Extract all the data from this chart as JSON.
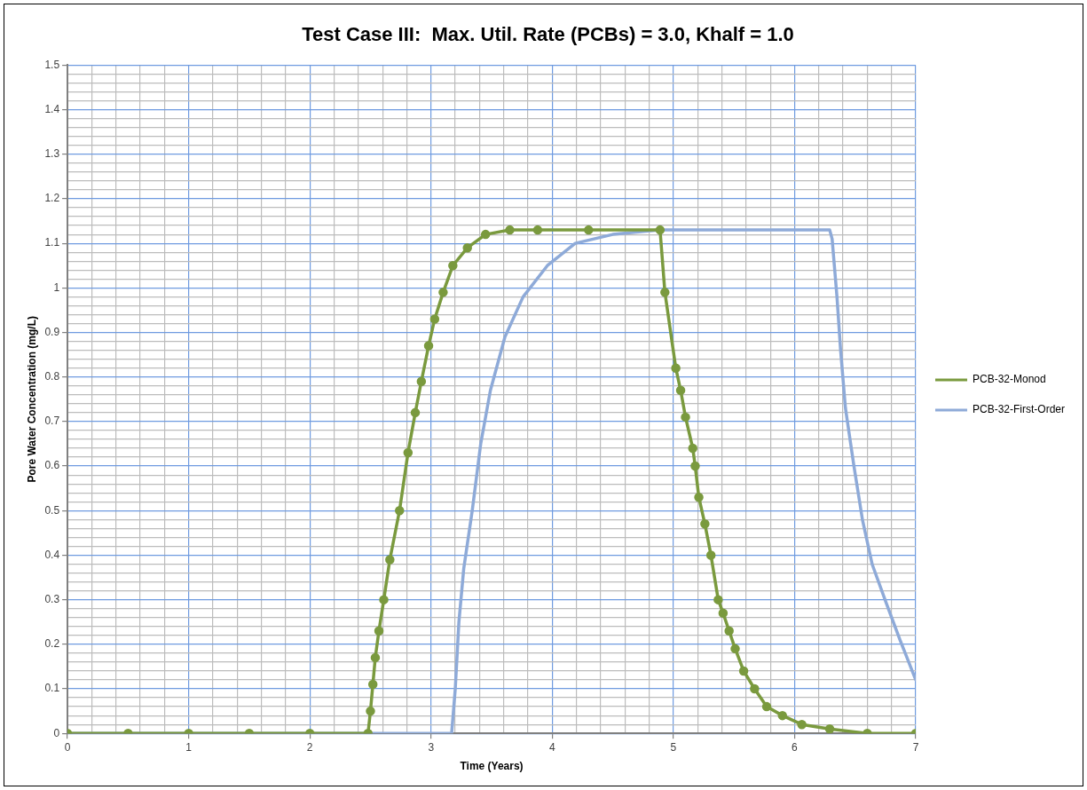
{
  "chart_data": {
    "type": "line",
    "title": "Test Case III:  Max. Util. Rate (PCBs) = 3.0, Khalf = 1.0",
    "xlabel": "Time (Years)",
    "ylabel": "Pore Water Concentration (mg/L)",
    "series": [
      {
        "name": "PCB-32-Monod",
        "color": "#7a9a3e",
        "marker": "circle",
        "x": [
          0,
          0.5,
          1,
          1.5,
          2,
          2.48,
          2.5,
          2.52,
          2.54,
          2.57,
          2.61,
          2.66,
          2.74,
          2.81,
          2.87,
          2.92,
          2.98,
          3.03,
          3.1,
          3.18,
          3.3,
          3.45,
          3.65,
          3.88,
          4.3,
          4.89,
          4.93,
          5.02,
          5.06,
          5.1,
          5.16,
          5.18,
          5.21,
          5.26,
          5.31,
          5.37,
          5.41,
          5.46,
          5.51,
          5.58,
          5.67,
          5.77,
          5.9,
          6.06,
          6.29,
          6.6,
          7
        ],
        "values": [
          0,
          0,
          0,
          0,
          0,
          0,
          0.05,
          0.11,
          0.17,
          0.23,
          0.3,
          0.39,
          0.5,
          0.63,
          0.72,
          0.79,
          0.87,
          0.93,
          0.99,
          1.05,
          1.09,
          1.12,
          1.13,
          1.13,
          1.13,
          1.13,
          0.99,
          0.82,
          0.77,
          0.71,
          0.64,
          0.6,
          0.53,
          0.47,
          0.4,
          0.3,
          0.27,
          0.23,
          0.19,
          0.14,
          0.1,
          0.06,
          0.04,
          0.02,
          0.01,
          0,
          0
        ]
      },
      {
        "name": "PCB-32-First-Order",
        "color": "#8eaad8",
        "marker": "none",
        "x": [
          0,
          3.17,
          3.2,
          3.23,
          3.27,
          3.34,
          3.41,
          3.49,
          3.61,
          3.76,
          3.96,
          4.19,
          4.5,
          4.89,
          5.44,
          6.29,
          6.31,
          6.35,
          6.38,
          6.42,
          6.49,
          6.56,
          6.64,
          6.76,
          6.87,
          7
        ],
        "values": [
          0,
          0,
          0.1,
          0.25,
          0.37,
          0.5,
          0.65,
          0.77,
          0.89,
          0.98,
          1.05,
          1.1,
          1.12,
          1.13,
          1.13,
          1.13,
          1.11,
          0.98,
          0.86,
          0.73,
          0.6,
          0.48,
          0.38,
          0.29,
          0.21,
          0.12
        ]
      }
    ],
    "xlim": [
      0,
      7
    ],
    "xticks": [
      0,
      {
        "value": 0.2,
        "label": null
      },
      {
        "value": 0.4,
        "label": null
      },
      {
        "value": 0.6,
        "label": null
      },
      {
        "value": 0.8,
        "label": null
      },
      1,
      {
        "value": 1.2,
        "label": null
      },
      {
        "value": 1.4,
        "label": null
      },
      {
        "value": 1.6,
        "label": null
      },
      {
        "value": 1.8,
        "label": null
      },
      2,
      {
        "value": 2.2,
        "label": null
      },
      {
        "value": 2.4,
        "label": null
      },
      {
        "value": 2.6,
        "label": null
      },
      {
        "value": 2.8,
        "label": null
      },
      3,
      {
        "value": 3.2,
        "label": null
      },
      {
        "value": 3.4,
        "label": null
      },
      {
        "value": 3.6,
        "label": null
      },
      {
        "value": 3.8,
        "label": null
      },
      4,
      {
        "value": 4.2,
        "label": null
      },
      {
        "value": 4.4,
        "label": null
      },
      {
        "value": 4.6,
        "label": null
      },
      {
        "value": 4.8,
        "label": null
      },
      5,
      {
        "value": 5.2,
        "label": null
      },
      {
        "value": 5.4,
        "label": null
      },
      {
        "value": 5.6,
        "label": null
      },
      {
        "value": 5.8,
        "label": null
      },
      6,
      {
        "value": 6.2,
        "label": null
      },
      {
        "value": 6.4,
        "label": null
      },
      {
        "value": 6.6,
        "label": null
      },
      {
        "value": 6.8,
        "label": null
      },
      7
    ],
    "ylim": [
      0,
      1.5
    ],
    "yticks": [
      0,
      {
        "value": 0.02,
        "label": null
      },
      {
        "value": 0.04,
        "label": null
      },
      {
        "value": 0.06,
        "label": null
      },
      {
        "value": 0.08,
        "label": null
      },
      0.1,
      {
        "value": 0.12,
        "label": null
      },
      {
        "value": 0.14,
        "label": null
      },
      {
        "value": 0.16,
        "label": null
      },
      {
        "value": 0.18,
        "label": null
      },
      0.2,
      {
        "value": 0.22,
        "label": null
      },
      {
        "value": 0.24,
        "label": null
      },
      {
        "value": 0.26,
        "label": null
      },
      {
        "value": 0.28,
        "label": null
      },
      0.3,
      {
        "value": 0.32,
        "label": null
      },
      {
        "value": 0.34,
        "label": null
      },
      {
        "value": 0.36,
        "label": null
      },
      {
        "value": 0.38,
        "label": null
      },
      0.4,
      {
        "value": 0.42,
        "label": null
      },
      {
        "value": 0.44,
        "label": null
      },
      {
        "value": 0.46,
        "label": null
      },
      {
        "value": 0.48,
        "label": null
      },
      0.5,
      {
        "value": 0.52,
        "label": null
      },
      {
        "value": 0.54,
        "label": null
      },
      {
        "value": 0.56,
        "label": null
      },
      {
        "value": 0.58,
        "label": null
      },
      0.6,
      {
        "value": 0.62,
        "label": null
      },
      {
        "value": 0.64,
        "label": null
      },
      {
        "value": 0.66,
        "label": null
      },
      {
        "value": 0.68,
        "label": null
      },
      0.7,
      {
        "value": 0.72,
        "label": null
      },
      {
        "value": 0.74,
        "label": null
      },
      {
        "value": 0.76,
        "label": null
      },
      {
        "value": 0.78,
        "label": null
      },
      0.8,
      {
        "value": 0.82,
        "label": null
      },
      {
        "value": 0.84,
        "label": null
      },
      {
        "value": 0.86,
        "label": null
      },
      {
        "value": 0.88,
        "label": null
      },
      0.9,
      {
        "value": 0.92,
        "label": null
      },
      {
        "value": 0.94,
        "label": null
      },
      {
        "value": 0.96,
        "label": null
      },
      {
        "value": 0.98,
        "label": null
      },
      1,
      {
        "value": 1.02,
        "label": null
      },
      {
        "value": 1.04,
        "label": null
      },
      {
        "value": 1.06,
        "label": null
      },
      {
        "value": 1.08,
        "label": null
      },
      1.1,
      {
        "value": 1.12,
        "label": null
      },
      {
        "value": 1.14,
        "label": null
      },
      {
        "value": 1.16,
        "label": null
      },
      {
        "value": 1.18,
        "label": null
      },
      1.2,
      {
        "value": 1.22,
        "label": null
      },
      {
        "value": 1.24,
        "label": null
      },
      {
        "value": 1.26,
        "label": null
      },
      {
        "value": 1.28,
        "label": null
      },
      1.3,
      {
        "value": 1.32,
        "label": null
      },
      {
        "value": 1.34,
        "label": null
      },
      {
        "value": 1.36,
        "label": null
      },
      {
        "value": 1.38,
        "label": null
      },
      1.4,
      {
        "value": 1.42,
        "label": null
      },
      {
        "value": 1.44,
        "label": null
      },
      {
        "value": 1.46,
        "label": null
      },
      {
        "value": 1.48,
        "label": null
      },
      1.5
    ],
    "grid": true,
    "legend": "right",
    "line_style": "solid"
  }
}
